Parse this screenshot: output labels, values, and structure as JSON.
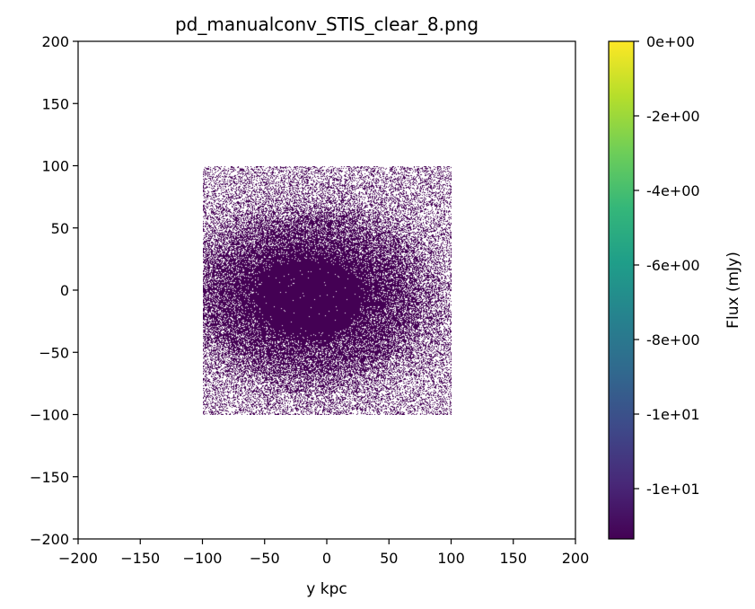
{
  "chart_data": {
    "type": "heatmap",
    "title": "pd_manualconv_STIS_clear_8.png",
    "xlabel": "y kpc",
    "ylabel": "",
    "xlim": [
      -200,
      200
    ],
    "ylim": [
      -200,
      200
    ],
    "x_ticks": [
      -200,
      -150,
      -100,
      -50,
      0,
      50,
      100,
      150,
      200
    ],
    "y_ticks": [
      -200,
      -150,
      -100,
      -50,
      0,
      50,
      100,
      150,
      200
    ],
    "x_tick_labels": [
      "−200",
      "−150",
      "−100",
      "−50",
      "0",
      "50",
      "100",
      "150",
      "200"
    ],
    "y_tick_labels": [
      "−200",
      "−150",
      "−100",
      "−50",
      "0",
      "50",
      "100",
      "150",
      "200"
    ],
    "data_extent": {
      "x": [
        -100,
        100
      ],
      "y": [
        -100,
        100
      ]
    },
    "pixel_value_color": "#440154",
    "background_color": "#ffffff",
    "colormap": "viridis",
    "colorbar": {
      "label": "Flux (mJy)",
      "tick_labels": [
        "0e+00",
        "-2e+00",
        "-4e+00",
        "-6e+00",
        "-8e+00",
        "-1e+01",
        "-1e+01"
      ],
      "colors": [
        "#fde725",
        "#b5de2b",
        "#6ece58",
        "#35b779",
        "#1f9e89",
        "#26828e",
        "#31688e",
        "#3e4989",
        "#482878",
        "#440154"
      ]
    }
  }
}
